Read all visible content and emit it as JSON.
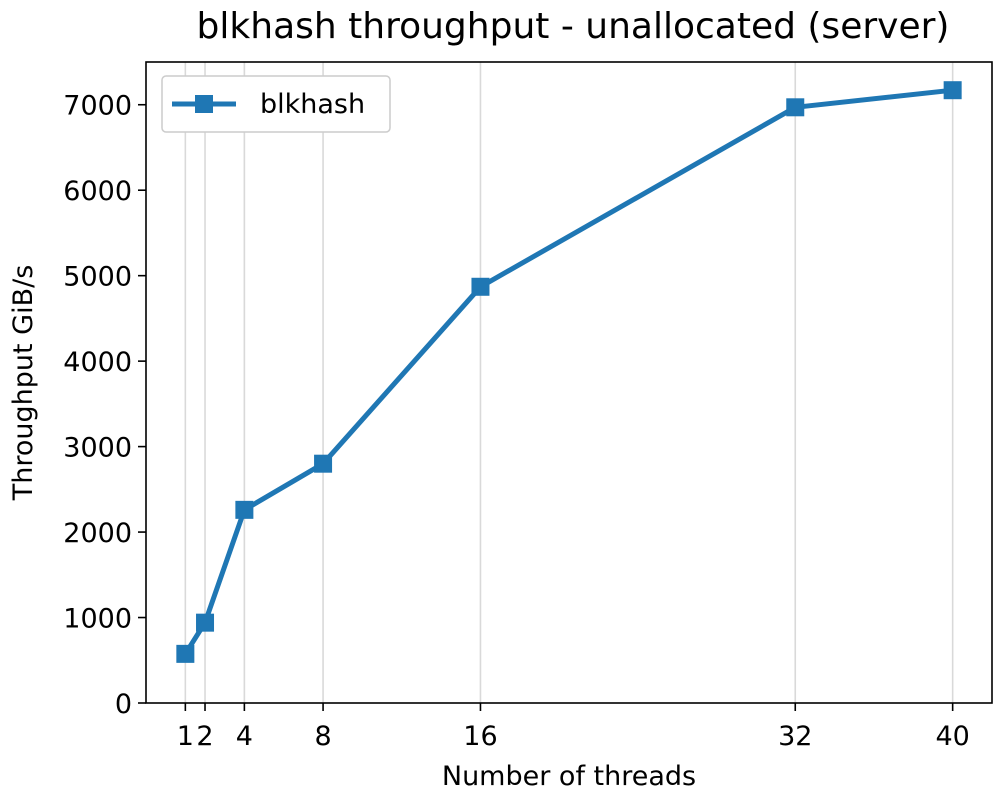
{
  "chart_data": {
    "type": "line",
    "title": "blkhash throughput - unallocated (server)",
    "xlabel": "Number of threads",
    "ylabel": "Throughput GiB/s",
    "x": [
      1,
      2,
      4,
      8,
      16,
      32,
      40
    ],
    "x_tick_labels": [
      "1",
      "2",
      "4",
      "8",
      "16",
      "32",
      "40"
    ],
    "y_ticks": [
      0,
      1000,
      2000,
      3000,
      4000,
      5000,
      6000,
      7000
    ],
    "xlim": [
      -1,
      42
    ],
    "ylim": [
      0,
      7500
    ],
    "grid": "vertical",
    "legend_position": "top-left",
    "series": [
      {
        "name": "blkhash",
        "color": "#1f77b4",
        "marker": "square",
        "values": [
          575,
          940,
          2260,
          2800,
          4870,
          6970,
          7170
        ]
      }
    ]
  }
}
